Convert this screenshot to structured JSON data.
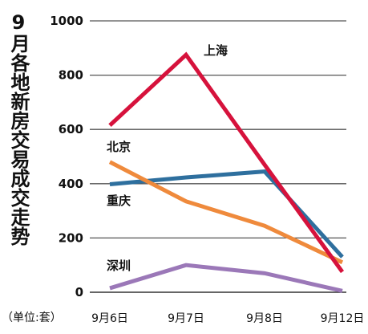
{
  "title": "9月各地新房交易成交走势",
  "unit_label": "（单位:套）",
  "chart_data": {
    "type": "line",
    "title": "9月各地新房交易成交走势",
    "xlabel": "",
    "ylabel": "（单位:套）",
    "categories": [
      "9月6日",
      "9月7日",
      "9月8日",
      "9月12日"
    ],
    "ylim": [
      0,
      1000
    ],
    "yticks": [
      0,
      200,
      400,
      600,
      800,
      1000
    ],
    "grid": true,
    "series": [
      {
        "name": "上海",
        "values": [
          615,
          875,
          470,
          75
        ],
        "color": "#d6123c"
      },
      {
        "name": "北京",
        "values": [
          480,
          335,
          245,
          110
        ],
        "color": "#ef8a3c"
      },
      {
        "name": "重庆",
        "values": [
          398,
          423,
          445,
          130
        ],
        "color": "#2e6f9e"
      },
      {
        "name": "深圳",
        "values": [
          15,
          100,
          70,
          5
        ],
        "color": "#9b78b8"
      }
    ]
  }
}
